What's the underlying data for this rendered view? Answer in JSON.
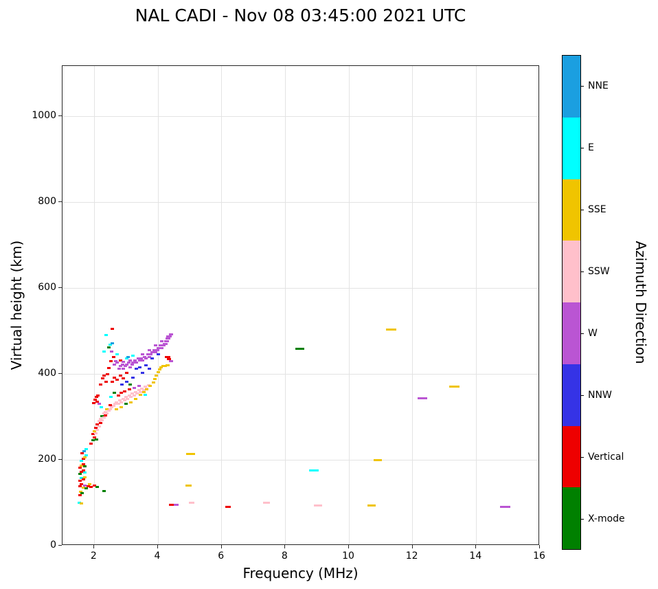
{
  "chart_data": {
    "type": "scatter",
    "title": "NAL CADI - Nov 08 03:45:00 2021 UTC",
    "xlabel": "Frequency (MHz)",
    "ylabel": "Virtual height (km)",
    "xlim": [
      1,
      16
    ],
    "ylim": [
      0,
      1117
    ],
    "xticks": [
      2,
      4,
      6,
      8,
      10,
      12,
      14,
      16
    ],
    "yticks": [
      0,
      200,
      400,
      600,
      800,
      1000
    ],
    "grid": true,
    "point_size": {
      "w": 5,
      "h": 3
    },
    "colorbar": {
      "label": "Azimuth Direction",
      "categories_top_to_bottom": [
        "NNE",
        "E",
        "SSE",
        "SSW",
        "W",
        "NNW",
        "Vertical",
        "X-mode"
      ],
      "colors": {
        "NNE": "#1b9fe0",
        "E": "#00ffff",
        "SSE": "#f0c400",
        "SSW": "#ffc0cb",
        "W": "#ba55d3",
        "NNW": "#3533e6",
        "Vertical": "#ee0000",
        "X-mode": "#008000"
      }
    },
    "points": [
      [
        1.52,
        100,
        "E"
      ],
      [
        1.6,
        98,
        "SSE"
      ],
      [
        1.55,
        118,
        "Vertical"
      ],
      [
        1.58,
        125,
        "SSE"
      ],
      [
        1.62,
        122,
        "X-mode"
      ],
      [
        1.55,
        138,
        "Vertical"
      ],
      [
        1.6,
        143,
        "Vertical"
      ],
      [
        1.65,
        136,
        "SSE"
      ],
      [
        1.7,
        140,
        "W"
      ],
      [
        1.75,
        133,
        "X-mode"
      ],
      [
        1.8,
        138,
        "Vertical"
      ],
      [
        1.85,
        143,
        "SSE"
      ],
      [
        1.9,
        137,
        "Vertical"
      ],
      [
        2.0,
        140,
        "Vertical"
      ],
      [
        2.1,
        137,
        "X-mode"
      ],
      [
        2.3,
        128,
        "X-mode"
      ],
      [
        1.55,
        152,
        "Vertical"
      ],
      [
        1.6,
        158,
        "E"
      ],
      [
        1.65,
        155,
        "Vertical"
      ],
      [
        1.7,
        160,
        "SSE"
      ],
      [
        1.55,
        168,
        "X-mode"
      ],
      [
        1.6,
        172,
        "Vertical"
      ],
      [
        1.65,
        176,
        "Vertical"
      ],
      [
        1.7,
        170,
        "E"
      ],
      [
        1.55,
        182,
        "Vertical"
      ],
      [
        1.6,
        186,
        "SSE"
      ],
      [
        1.65,
        190,
        "Vertical"
      ],
      [
        1.7,
        185,
        "X-mode"
      ],
      [
        1.6,
        198,
        "E"
      ],
      [
        1.65,
        202,
        "Vertical"
      ],
      [
        1.7,
        206,
        "SSE"
      ],
      [
        1.75,
        210,
        "E"
      ],
      [
        1.62,
        215,
        "Vertical"
      ],
      [
        1.68,
        220,
        "NNE"
      ],
      [
        1.74,
        225,
        "E"
      ],
      [
        1.9,
        238,
        "Vertical"
      ],
      [
        1.95,
        245,
        "X-mode"
      ],
      [
        2.0,
        252,
        "Vertical"
      ],
      [
        1.95,
        260,
        "Vertical"
      ],
      [
        2.0,
        266,
        "SSE"
      ],
      [
        2.05,
        262,
        "SSW"
      ],
      [
        2.05,
        274,
        "Vertical"
      ],
      [
        2.06,
        248,
        "X-mode"
      ],
      [
        2.1,
        270,
        "SSW"
      ],
      [
        2.1,
        282,
        "Vertical"
      ],
      [
        2.15,
        278,
        "SSW"
      ],
      [
        2.15,
        290,
        "SSW"
      ],
      [
        2.2,
        286,
        "Vertical"
      ],
      [
        2.2,
        296,
        "SSW"
      ],
      [
        2.25,
        292,
        "SSW"
      ],
      [
        2.25,
        302,
        "X-mode"
      ],
      [
        2.3,
        298,
        "SSW"
      ],
      [
        2.3,
        308,
        "SSW"
      ],
      [
        2.35,
        304,
        "Vertical"
      ],
      [
        2.35,
        312,
        "SSW"
      ],
      [
        2.4,
        308,
        "SSW"
      ],
      [
        2.4,
        318,
        "SSE"
      ],
      [
        2.45,
        314,
        "SSW"
      ],
      [
        2.5,
        318,
        "SSW"
      ],
      [
        2.5,
        328,
        "Vertical"
      ],
      [
        2.55,
        322,
        "SSW"
      ],
      [
        2.6,
        326,
        "SSW"
      ],
      [
        1.98,
        332,
        "Vertical"
      ],
      [
        2.02,
        340,
        "Vertical"
      ],
      [
        2.06,
        346,
        "Vertical"
      ],
      [
        2.1,
        336,
        "Vertical"
      ],
      [
        2.15,
        330,
        "W"
      ],
      [
        2.12,
        350,
        "Vertical"
      ],
      [
        2.22,
        322,
        "E"
      ],
      [
        2.65,
        330,
        "SSW"
      ],
      [
        2.7,
        334,
        "SSW"
      ],
      [
        2.75,
        330,
        "SSW"
      ],
      [
        2.8,
        338,
        "SSW"
      ],
      [
        2.85,
        334,
        "SSW"
      ],
      [
        2.9,
        342,
        "SSW"
      ],
      [
        2.95,
        338,
        "SSW"
      ],
      [
        3.0,
        346,
        "SSW"
      ],
      [
        3.05,
        342,
        "SSW"
      ],
      [
        3.1,
        350,
        "SSW"
      ],
      [
        3.15,
        346,
        "SSW"
      ],
      [
        3.2,
        354,
        "SSW"
      ],
      [
        3.25,
        350,
        "SSW"
      ],
      [
        3.3,
        358,
        "SSW"
      ],
      [
        3.35,
        354,
        "SSW"
      ],
      [
        3.4,
        362,
        "SSW"
      ],
      [
        3.45,
        358,
        "SSW"
      ],
      [
        3.5,
        366,
        "SSW"
      ],
      [
        3.55,
        362,
        "SSW"
      ],
      [
        3.6,
        370,
        "SSW"
      ],
      [
        3.65,
        366,
        "SSW"
      ],
      [
        3.7,
        374,
        "SSW"
      ],
      [
        2.7,
        318,
        "SSE"
      ],
      [
        2.85,
        322,
        "SSE"
      ],
      [
        3.0,
        330,
        "X-mode"
      ],
      [
        3.15,
        334,
        "SSE"
      ],
      [
        3.3,
        342,
        "SSE"
      ],
      [
        2.52,
        346,
        "E"
      ],
      [
        3.6,
        352,
        "E"
      ],
      [
        2.75,
        350,
        "Vertical"
      ],
      [
        2.85,
        356,
        "Vertical"
      ],
      [
        2.95,
        360,
        "Vertical"
      ],
      [
        3.1,
        364,
        "Vertical"
      ],
      [
        3.25,
        368,
        "W"
      ],
      [
        3.4,
        372,
        "W"
      ],
      [
        2.62,
        356,
        "X-mode"
      ],
      [
        3.12,
        376,
        "X-mode"
      ],
      [
        3.45,
        352,
        "SSE"
      ],
      [
        3.55,
        358,
        "SSE"
      ],
      [
        3.65,
        364,
        "SSE"
      ],
      [
        3.75,
        372,
        "SSE"
      ],
      [
        3.85,
        380,
        "SSE"
      ],
      [
        3.9,
        388,
        "SSE"
      ],
      [
        3.95,
        396,
        "SSE"
      ],
      [
        4.0,
        404,
        "SSE"
      ],
      [
        4.05,
        410,
        "SSE"
      ],
      [
        4.1,
        415,
        "SSE"
      ],
      [
        4.2,
        418,
        "SSE",
        8
      ],
      [
        4.3,
        420,
        "SSE",
        6
      ],
      [
        2.2,
        376,
        "Vertical"
      ],
      [
        2.26,
        390,
        "Vertical"
      ],
      [
        2.3,
        396,
        "Vertical"
      ],
      [
        2.36,
        382,
        "Vertical"
      ],
      [
        2.42,
        400,
        "Vertical"
      ],
      [
        2.46,
        414,
        "Vertical"
      ],
      [
        2.52,
        430,
        "Vertical"
      ],
      [
        2.56,
        382,
        "Vertical"
      ],
      [
        2.62,
        392,
        "Vertical"
      ],
      [
        2.72,
        386,
        "Vertical"
      ],
      [
        2.82,
        396,
        "Vertical"
      ],
      [
        2.92,
        390,
        "Vertical"
      ],
      [
        2.56,
        505,
        "Vertical"
      ],
      [
        2.86,
        376,
        "NNW"
      ],
      [
        3.02,
        382,
        "NNW"
      ],
      [
        3.22,
        392,
        "NNW"
      ],
      [
        3.52,
        402,
        "NNW"
      ],
      [
        3.72,
        412,
        "NNW"
      ],
      [
        2.5,
        468,
        "E"
      ],
      [
        2.55,
        452,
        "W"
      ],
      [
        2.6,
        440,
        "Vertical"
      ],
      [
        2.62,
        422,
        "W"
      ],
      [
        2.68,
        430,
        "W"
      ],
      [
        2.72,
        426,
        "W"
      ],
      [
        2.72,
        446,
        "E"
      ],
      [
        2.78,
        412,
        "W"
      ],
      [
        2.82,
        418,
        "W"
      ],
      [
        2.82,
        432,
        "Vertical"
      ],
      [
        2.88,
        422,
        "W"
      ],
      [
        2.92,
        412,
        "W"
      ],
      [
        2.92,
        428,
        "W"
      ],
      [
        2.98,
        418,
        "W"
      ],
      [
        3.02,
        422,
        "W"
      ],
      [
        3.02,
        402,
        "Vertical"
      ],
      [
        3.08,
        426,
        "W"
      ],
      [
        3.12,
        416,
        "W"
      ],
      [
        3.12,
        432,
        "W"
      ],
      [
        3.18,
        422,
        "W"
      ],
      [
        3.22,
        426,
        "W"
      ],
      [
        3.22,
        442,
        "E"
      ],
      [
        3.28,
        432,
        "W"
      ],
      [
        3.32,
        426,
        "W"
      ],
      [
        3.32,
        412,
        "NNW"
      ],
      [
        3.38,
        436,
        "W"
      ],
      [
        3.42,
        432,
        "W"
      ],
      [
        3.42,
        416,
        "NNW"
      ],
      [
        3.48,
        436,
        "W"
      ],
      [
        3.52,
        432,
        "W"
      ],
      [
        3.52,
        446,
        "W"
      ],
      [
        3.58,
        440,
        "W"
      ],
      [
        3.62,
        436,
        "W"
      ],
      [
        3.62,
        420,
        "NNW"
      ],
      [
        3.68,
        446,
        "W"
      ],
      [
        3.72,
        440,
        "W"
      ],
      [
        3.72,
        456,
        "W"
      ],
      [
        3.78,
        446,
        "W"
      ],
      [
        3.82,
        450,
        "W"
      ],
      [
        3.82,
        436,
        "NNW"
      ],
      [
        3.88,
        455,
        "W"
      ],
      [
        3.92,
        450,
        "W"
      ],
      [
        3.92,
        466,
        "W"
      ],
      [
        3.98,
        456,
        "W"
      ],
      [
        4.02,
        460,
        "W"
      ],
      [
        4.02,
        446,
        "NNW"
      ],
      [
        4.08,
        466,
        "W"
      ],
      [
        4.12,
        460,
        "W"
      ],
      [
        4.12,
        476,
        "W"
      ],
      [
        4.18,
        466,
        "W"
      ],
      [
        4.22,
        470,
        "W",
        7
      ],
      [
        4.28,
        476,
        "W",
        7
      ],
      [
        4.32,
        482,
        "W",
        7
      ],
      [
        4.3,
        440,
        "Vertical",
        8
      ],
      [
        4.35,
        487,
        "W",
        8
      ],
      [
        4.4,
        492,
        "W",
        6
      ],
      [
        4.35,
        435,
        "Vertical",
        6
      ],
      [
        4.42,
        430,
        "W",
        6
      ],
      [
        2.36,
        490,
        "E"
      ],
      [
        2.3,
        452,
        "E"
      ],
      [
        3.02,
        436,
        "E"
      ],
      [
        2.46,
        462,
        "X-mode"
      ],
      [
        2.56,
        472,
        "NNE"
      ],
      [
        3.06,
        440,
        "NNE"
      ],
      [
        4.45,
        95,
        "Vertical",
        10
      ],
      [
        4.58,
        96,
        "W",
        7
      ],
      [
        5.05,
        100,
        "SSW",
        8
      ],
      [
        4.95,
        140,
        "SSE",
        9
      ],
      [
        5.02,
        213,
        "SSE",
        13
      ],
      [
        6.2,
        90,
        "Vertical",
        8
      ],
      [
        7.4,
        100,
        "SSW",
        10
      ],
      [
        8.45,
        458,
        "X-mode",
        13
      ],
      [
        8.9,
        175,
        "E",
        14
      ],
      [
        9.02,
        93,
        "SSW",
        12
      ],
      [
        10.72,
        93,
        "SSE",
        12
      ],
      [
        10.9,
        200,
        "SSE",
        12
      ],
      [
        11.32,
        503,
        "SSE",
        15
      ],
      [
        12.32,
        343,
        "W",
        14
      ],
      [
        13.32,
        370,
        "SSE",
        15
      ],
      [
        14.9,
        90,
        "W",
        15
      ]
    ]
  }
}
